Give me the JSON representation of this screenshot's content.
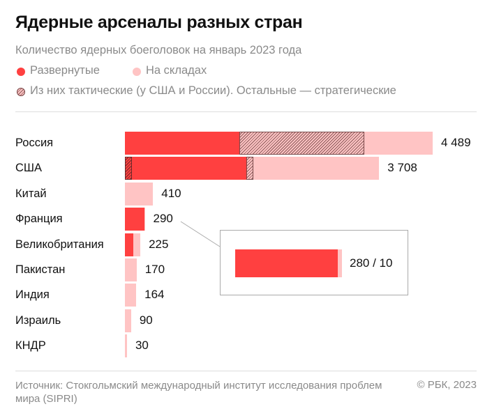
{
  "title": "Ядерные арсеналы разных стран",
  "subtitle": "Количество ядерных боеголовок на январь 2023 года",
  "legend": {
    "deployed": "Развернутые",
    "stored": "На складах",
    "tactical": "Из них тактические (у США и России). Остальные — стратегические"
  },
  "colors": {
    "deployed": "#ff4040",
    "stored": "#ffc4c4",
    "hatch": "#6b2a2a"
  },
  "chart_data": {
    "type": "bar",
    "orientation": "horizontal",
    "stacked": true,
    "grid": false,
    "legend_position": "top",
    "categories": [
      "Россия",
      "США",
      "Китай",
      "Франция",
      "Великобритания",
      "Пакистан",
      "Индия",
      "Израиль",
      "КНДР"
    ],
    "totals_labels": [
      "4 489",
      "3 708",
      "410",
      "290",
      "225",
      "170",
      "164",
      "90",
      "30"
    ],
    "totals": [
      4489,
      3708,
      410,
      290,
      225,
      170,
      164,
      90,
      30
    ],
    "series": [
      {
        "name": "Развернутые",
        "tactical": [
          0,
          100,
          0,
          0,
          0,
          0,
          0,
          0,
          0
        ],
        "values": [
          1674,
          1770,
          0,
          280,
          120,
          0,
          0,
          0,
          0
        ]
      },
      {
        "name": "На складах",
        "tactical": [
          1816,
          100,
          0,
          0,
          0,
          0,
          0,
          0,
          0
        ],
        "values": [
          2815,
          1938,
          410,
          10,
          105,
          170,
          164,
          90,
          30
        ]
      }
    ],
    "callout": {
      "category": "Франция",
      "label": "280 / 10",
      "deployed": 280,
      "stored": 10
    }
  },
  "footer": {
    "source": "Источник: Стокгольмский международный институт исследования проблем мира (SIPRI)",
    "copyright": "© РБК, 2023"
  }
}
